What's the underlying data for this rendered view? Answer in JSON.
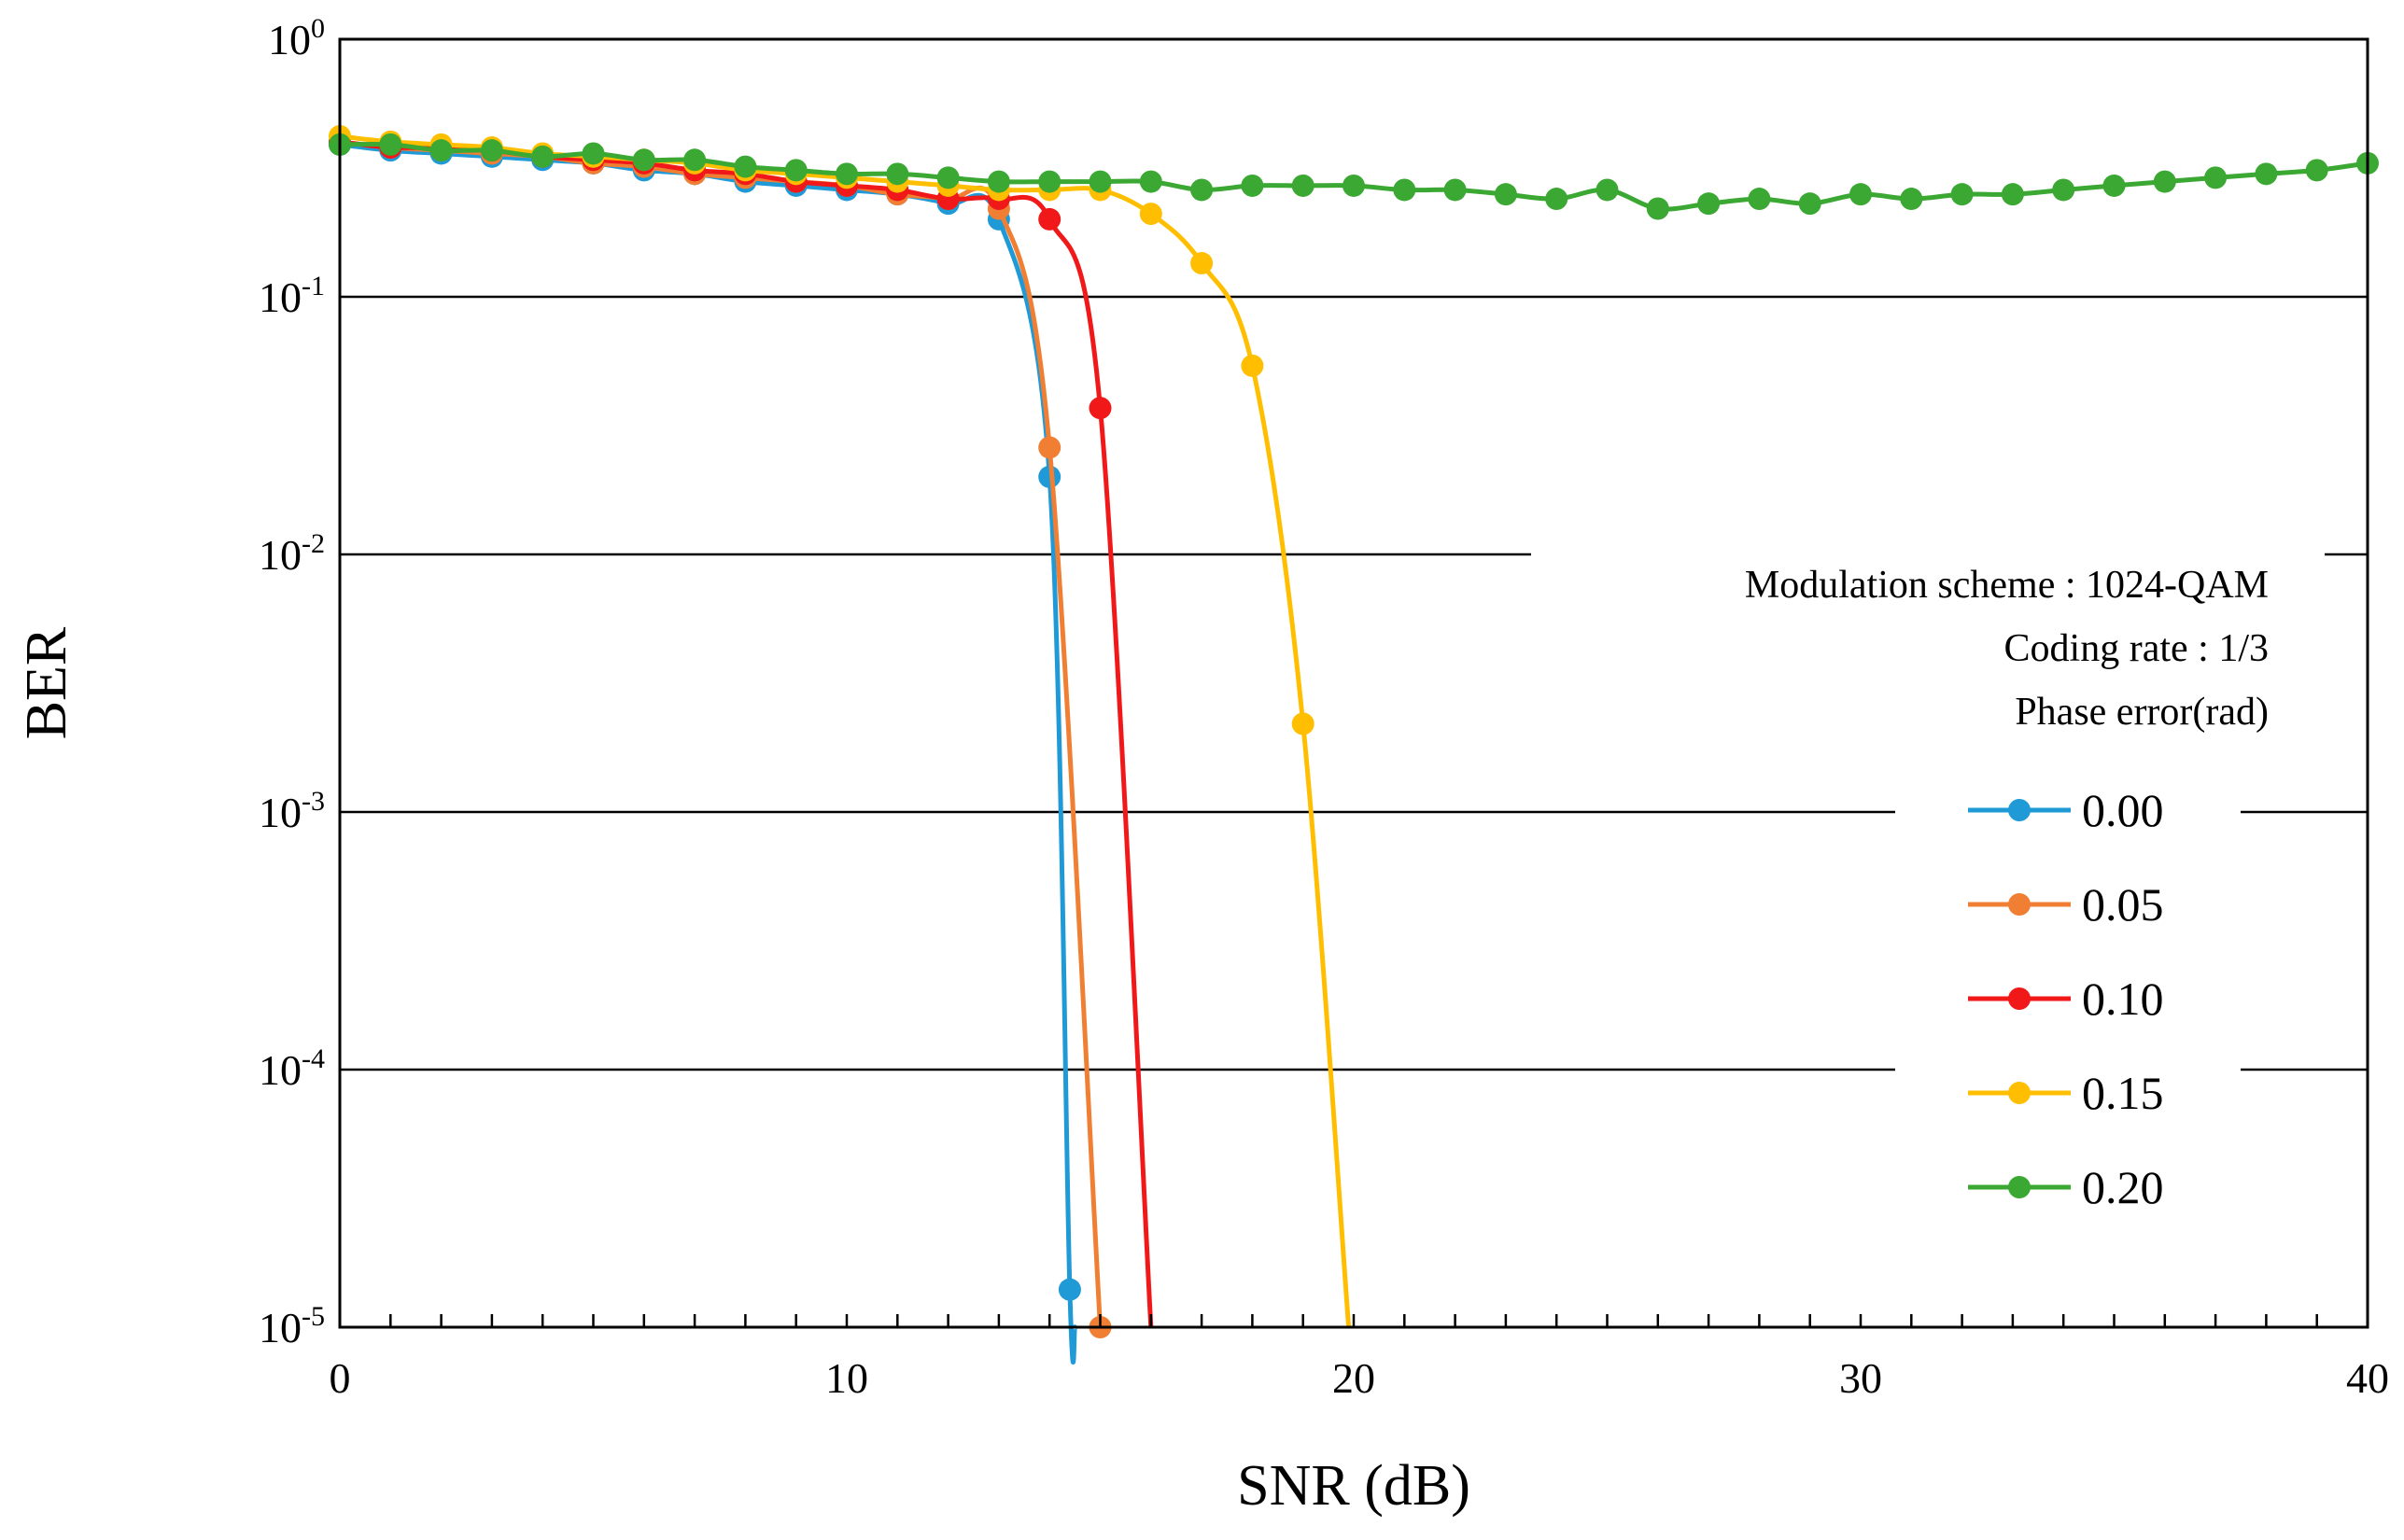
{
  "chart_data": {
    "type": "line",
    "yscale": "log",
    "xlabel": "SNR (dB)",
    "ylabel": "BER",
    "xlim": [
      0,
      40
    ],
    "ylim": [
      1e-05,
      1
    ],
    "x_ticks": [
      0,
      10,
      20,
      30,
      40
    ],
    "x_tick_labels": [
      "0",
      "10",
      "20",
      "30",
      "40"
    ],
    "y_ticks": [
      {
        "value": 1,
        "base": "10",
        "exp": "0"
      },
      {
        "value": 0.1,
        "base": "10",
        "exp": "-1"
      },
      {
        "value": 0.01,
        "base": "10",
        "exp": "-2"
      },
      {
        "value": 0.001,
        "base": "10",
        "exp": "-3"
      },
      {
        "value": 0.0001,
        "base": "10",
        "exp": "-4"
      },
      {
        "value": 1e-05,
        "base": "10",
        "exp": "-5"
      }
    ],
    "grid": "horizontal",
    "annotation": {
      "modulation": "Modulation scheme : 1024-QAM",
      "coding_rate": "Coding rate : 1/3",
      "legend_title": "Phase error(rad)"
    },
    "legend_position": "right",
    "series": [
      {
        "name": "0.00",
        "color": "#1f9ad6",
        "markers": [
          [
            0,
            0.39
          ],
          [
            1,
            0.37
          ],
          [
            2,
            0.36
          ],
          [
            3,
            0.35
          ],
          [
            4,
            0.34
          ],
          [
            5,
            0.33
          ],
          [
            6,
            0.31
          ],
          [
            7,
            0.3
          ],
          [
            8,
            0.28
          ],
          [
            9,
            0.27
          ],
          [
            10,
            0.26
          ],
          [
            11,
            0.25
          ],
          [
            12,
            0.23
          ],
          [
            13,
            0.2
          ],
          [
            14,
            0.02
          ],
          [
            14.4,
            1.4e-05
          ]
        ],
        "line_tail": [
          [
            14.5,
            1e-05
          ]
        ]
      },
      {
        "name": "0.05",
        "color": "#f07f34",
        "markers": [
          [
            0,
            0.4
          ],
          [
            1,
            0.38
          ],
          [
            2,
            0.37
          ],
          [
            3,
            0.36
          ],
          [
            4,
            0.35
          ],
          [
            5,
            0.33
          ],
          [
            6,
            0.32
          ],
          [
            7,
            0.3
          ],
          [
            8,
            0.29
          ],
          [
            9,
            0.28
          ],
          [
            10,
            0.27
          ],
          [
            11,
            0.25
          ],
          [
            12,
            0.24
          ],
          [
            13,
            0.22
          ],
          [
            14,
            0.026
          ],
          [
            15,
            1e-05
          ]
        ]
      },
      {
        "name": "0.10",
        "color": "#f01818",
        "markers": [
          [
            0,
            0.4
          ],
          [
            1,
            0.38
          ],
          [
            2,
            0.38
          ],
          [
            3,
            0.37
          ],
          [
            4,
            0.35
          ],
          [
            5,
            0.34
          ],
          [
            6,
            0.33
          ],
          [
            7,
            0.31
          ],
          [
            8,
            0.3
          ],
          [
            9,
            0.28
          ],
          [
            10,
            0.27
          ],
          [
            11,
            0.26
          ],
          [
            12,
            0.24
          ],
          [
            13,
            0.24
          ],
          [
            14,
            0.2
          ],
          [
            15,
            0.037
          ]
        ],
        "line_tail": [
          [
            16,
            1e-05
          ]
        ]
      },
      {
        "name": "0.15",
        "color": "#ffbf00",
        "markers": [
          [
            0,
            0.42
          ],
          [
            1,
            0.4
          ],
          [
            2,
            0.39
          ],
          [
            3,
            0.38
          ],
          [
            4,
            0.36
          ],
          [
            5,
            0.35
          ],
          [
            6,
            0.34
          ],
          [
            7,
            0.33
          ],
          [
            8,
            0.31
          ],
          [
            9,
            0.3
          ],
          [
            10,
            0.29
          ],
          [
            11,
            0.28
          ],
          [
            12,
            0.27
          ],
          [
            13,
            0.26
          ],
          [
            14,
            0.26
          ],
          [
            15,
            0.26
          ],
          [
            16,
            0.21
          ],
          [
            17,
            0.135
          ],
          [
            18,
            0.054
          ],
          [
            19,
            0.0022
          ]
        ],
        "line_tail": [
          [
            19.9,
            1e-05
          ]
        ]
      },
      {
        "name": "0.20",
        "color": "#3aa832",
        "markers": [
          [
            0,
            0.39
          ],
          [
            1,
            0.39
          ],
          [
            2,
            0.37
          ],
          [
            3,
            0.37
          ],
          [
            4,
            0.35
          ],
          [
            5,
            0.36
          ],
          [
            6,
            0.34
          ],
          [
            7,
            0.34
          ],
          [
            8,
            0.32
          ],
          [
            9,
            0.31
          ],
          [
            10,
            0.3
          ],
          [
            11,
            0.3
          ],
          [
            12,
            0.29
          ],
          [
            13,
            0.28
          ],
          [
            14,
            0.28
          ],
          [
            15,
            0.28
          ],
          [
            16,
            0.28
          ],
          [
            17,
            0.26
          ],
          [
            18,
            0.27
          ],
          [
            19,
            0.27
          ],
          [
            20,
            0.27
          ],
          [
            21,
            0.26
          ],
          [
            22,
            0.26
          ],
          [
            23,
            0.25
          ],
          [
            24,
            0.24
          ],
          [
            25,
            0.26
          ],
          [
            26,
            0.22
          ],
          [
            27,
            0.23
          ],
          [
            28,
            0.24
          ],
          [
            29,
            0.23
          ],
          [
            30,
            0.25
          ],
          [
            31,
            0.24
          ],
          [
            32,
            0.25
          ],
          [
            33,
            0.25
          ],
          [
            34,
            0.26
          ],
          [
            35,
            0.27
          ],
          [
            36,
            0.28
          ],
          [
            37,
            0.29
          ],
          [
            38,
            0.3
          ],
          [
            39,
            0.31
          ],
          [
            40,
            0.33
          ]
        ]
      }
    ]
  }
}
